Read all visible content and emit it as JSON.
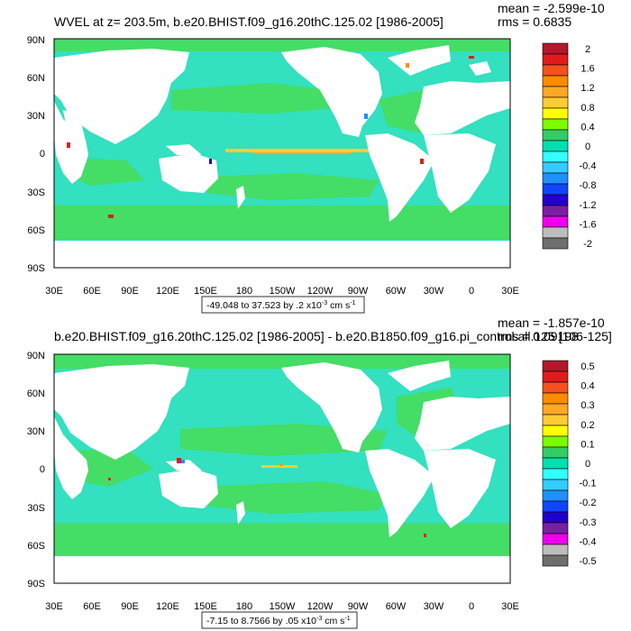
{
  "chart_data": [
    {
      "type": "heatmap",
      "title": "WVEL at z= 203.5m, b.e20.BHIST.f09_g16.20thC.125.02 [1986-2005]",
      "stats": {
        "mean": "mean = -2.599e-10",
        "rms": "rms = 0.6835"
      },
      "x_ticks": [
        "30E",
        "60E",
        "90E",
        "120E",
        "150E",
        "180",
        "150W",
        "120W",
        "90W",
        "60W",
        "30W",
        "0",
        "30E"
      ],
      "y_ticks": [
        "90N",
        "60N",
        "30N",
        "0",
        "30S",
        "60S",
        "90S"
      ],
      "colorbar_labels": [
        "2",
        "1.6",
        "1.2",
        "0.8",
        "0.4",
        "0",
        "-0.4",
        "-0.8",
        "-1.2",
        "-1.6",
        "-2"
      ],
      "colorbar_colors": [
        "#b2182b",
        "#e31a1c",
        "#f4511e",
        "#fb8c00",
        "#ffa726",
        "#ffcc33",
        "#ffff00",
        "#7cfc00",
        "#33cc66",
        "#00e0b0",
        "#33ffff",
        "#33ccff",
        "#1e90ff",
        "#1144ff",
        "#2200cc",
        "#7b1fa2",
        "#ee00ee",
        "#bdbdbd",
        "#6e6e6e"
      ],
      "range_note": "-49.048 to 37.523 by .2 x10",
      "range_exp": "-3",
      "range_units": "cm s",
      "range_units_exp": "-1",
      "xlim": [
        30,
        390
      ],
      "ylim": [
        -90,
        90
      ]
    },
    {
      "type": "heatmap",
      "title": "b.e20.BHIST.f09_g16.20thC.125.02 [1986-2005] - b.e20.B1850.f09_g16.pi_control.all.125 [106-125]",
      "stats": {
        "mean": "mean = -1.857e-10",
        "rms": "rms = 0.09198"
      },
      "x_ticks": [
        "30E",
        "60E",
        "90E",
        "120E",
        "150E",
        "180",
        "150W",
        "120W",
        "90W",
        "60W",
        "30W",
        "0",
        "30E"
      ],
      "y_ticks": [
        "90N",
        "60N",
        "30N",
        "0",
        "30S",
        "60S",
        "90S"
      ],
      "colorbar_labels": [
        "0.5",
        "0.4",
        "0.3",
        "0.2",
        "0.1",
        "0",
        "-0.1",
        "-0.2",
        "-0.3",
        "-0.4",
        "-0.5"
      ],
      "colorbar_colors": [
        "#b2182b",
        "#e31a1c",
        "#f4511e",
        "#fb8c00",
        "#ffa726",
        "#ffcc33",
        "#ffff00",
        "#7cfc00",
        "#33cc66",
        "#00e0b0",
        "#33ffff",
        "#33ccff",
        "#1e90ff",
        "#1144ff",
        "#2200cc",
        "#7b1fa2",
        "#ee00ee",
        "#bdbdbd",
        "#6e6e6e"
      ],
      "range_note": "-7.15 to 8.7566 by .05 x10",
      "range_exp": "-3",
      "range_units": "cm s",
      "range_units_exp": "-1",
      "xlim": [
        30,
        390
      ],
      "ylim": [
        -90,
        90
      ]
    }
  ],
  "colors": {
    "ocean": "#33e0bf",
    "ocean_band": "#44dd66",
    "land": "#ffffff",
    "frame": "#000000"
  }
}
